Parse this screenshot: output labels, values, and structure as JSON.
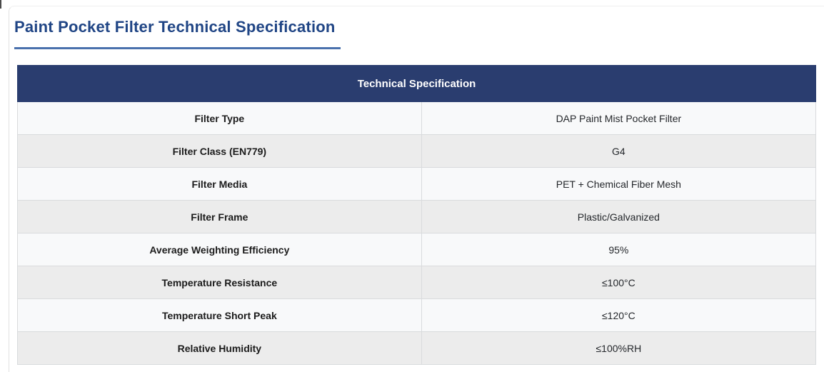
{
  "page": {
    "title": "Paint Pocket Filter Technical Specification"
  },
  "colors": {
    "title": "#204585",
    "title_underline": "#4a71ad",
    "table_header_bg": "#2a3d6f",
    "table_header_text": "#ffffff",
    "row_odd_bg": "#f8f9fa",
    "row_even_bg": "#ececec",
    "border": "#d9dbdd"
  },
  "table": {
    "header": "Technical Specification",
    "rows": [
      {
        "label": "Filter Type",
        "value": "DAP Paint Mist Pocket Filter"
      },
      {
        "label": "Filter Class (EN779)",
        "value": "G4"
      },
      {
        "label": "Filter Media",
        "value": "PET + Chemical Fiber Mesh"
      },
      {
        "label": "Filter Frame",
        "value": "Plastic/Galvanized"
      },
      {
        "label": "Average Weighting Efficiency",
        "value": "95%"
      },
      {
        "label": "Temperature Resistance",
        "value": "≤100°C"
      },
      {
        "label": "Temperature Short Peak",
        "value": "≤120°C"
      },
      {
        "label": "Relative Humidity",
        "value": "≤100%RH"
      }
    ]
  }
}
